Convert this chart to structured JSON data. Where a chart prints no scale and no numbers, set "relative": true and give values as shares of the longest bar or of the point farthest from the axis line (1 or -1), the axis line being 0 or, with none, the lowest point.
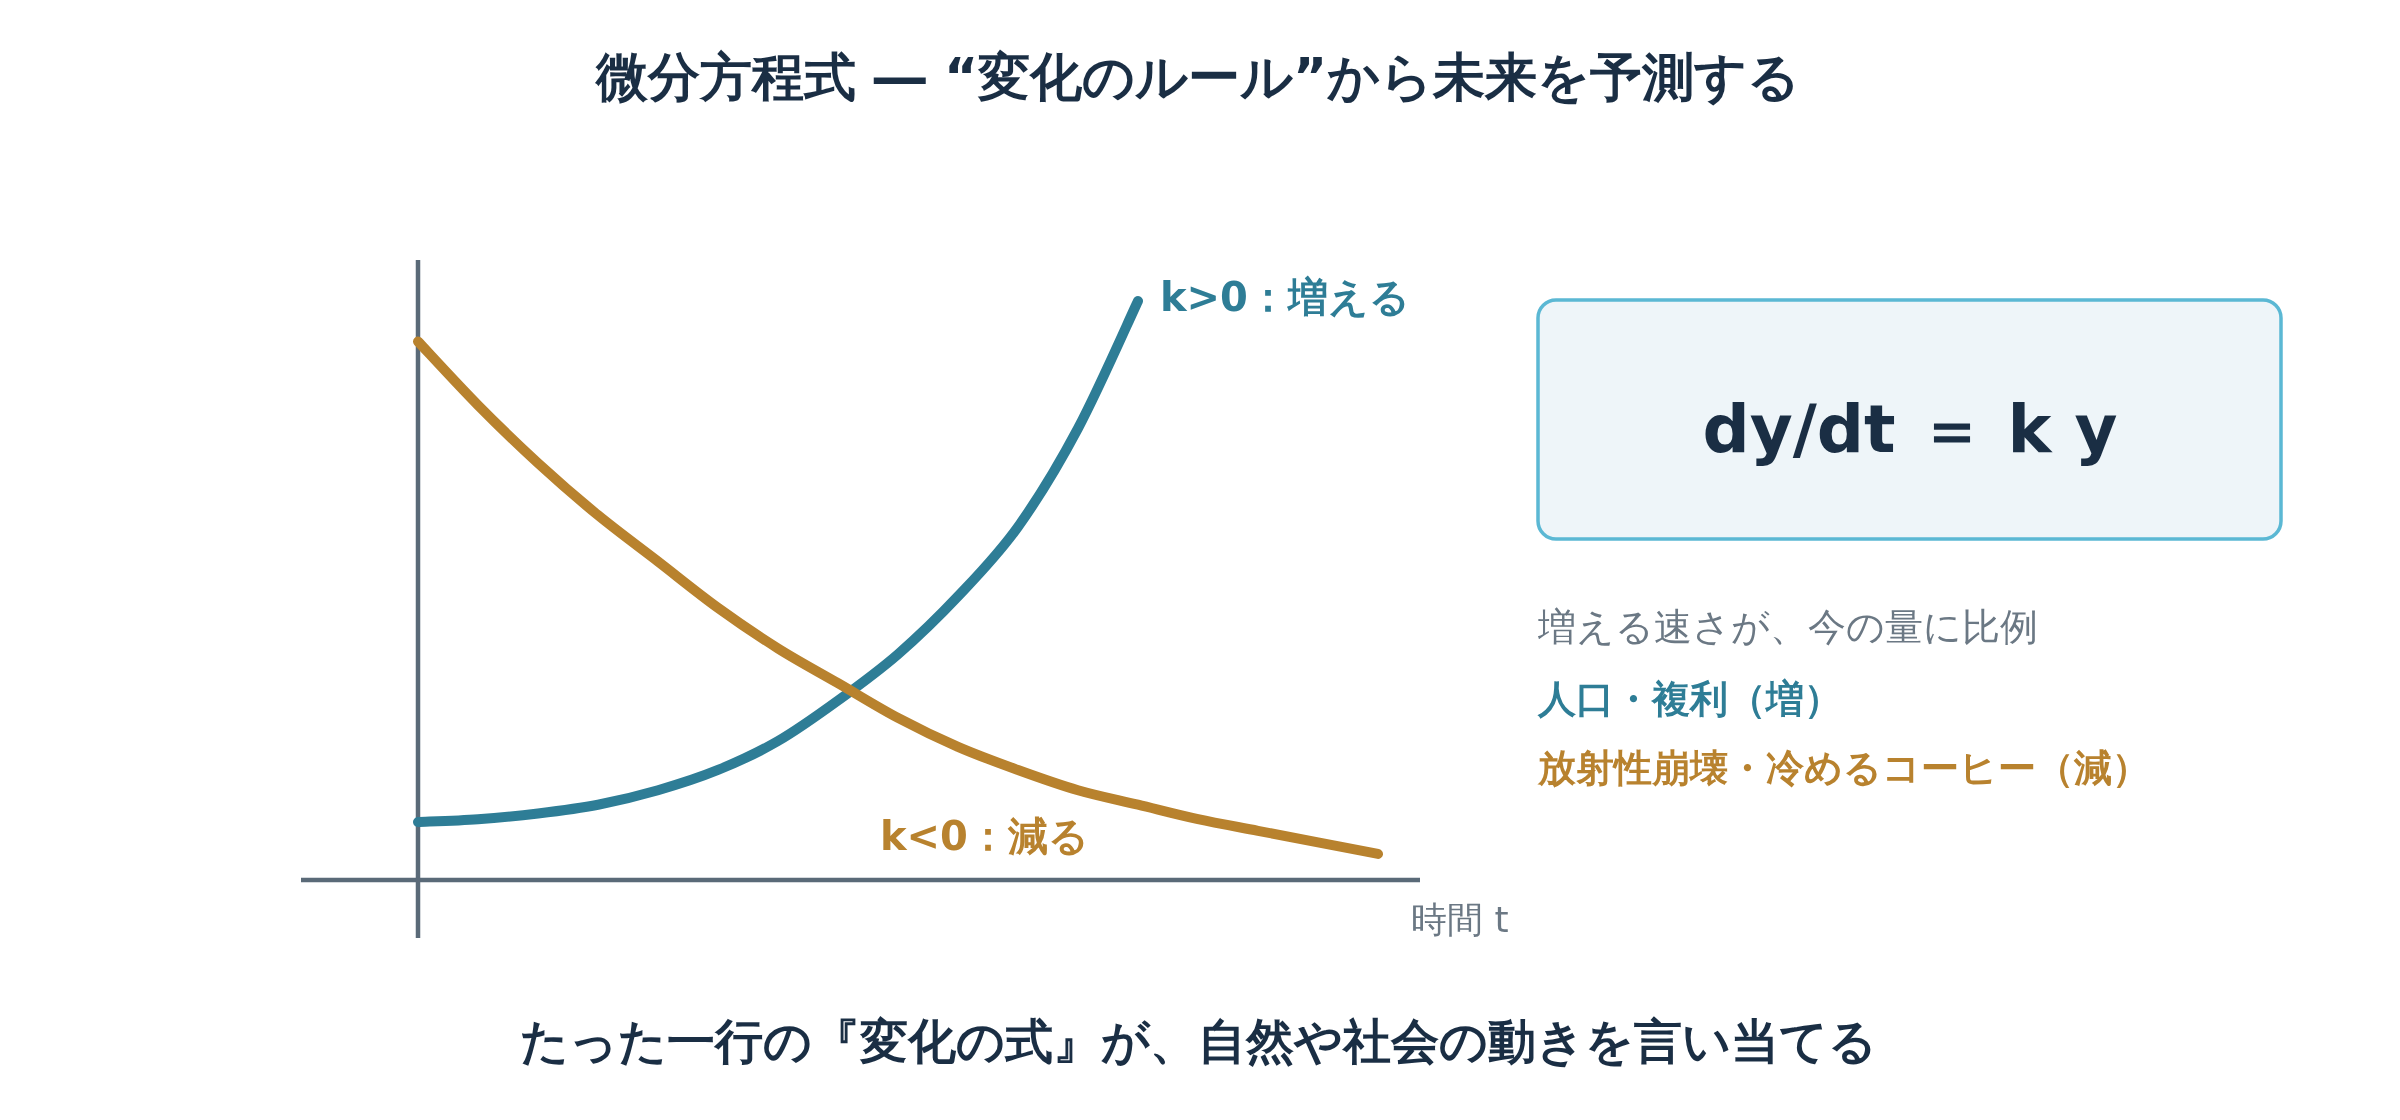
{
  "chart_data": {
    "type": "line",
    "relative": true,
    "title": "微分方程式 ― “変化のルール”から未来を予測する",
    "xlabel": "時間 t",
    "categories": [
      null,
      null,
      null,
      null,
      null,
      null,
      null,
      null,
      null,
      null,
      null,
      null,
      null,
      null,
      null,
      null,
      null
    ],
    "series": [
      {
        "name": "k>0：増える",
        "color": "#2e7d96",
        "values": [
          0.1,
          0.105,
          0.115,
          0.13,
          0.155,
          0.19,
          0.24,
          0.31,
          0.39,
          0.49,
          0.61,
          0.78,
          1.0,
          null,
          null,
          null,
          null
        ]
      },
      {
        "name": "k<0：減る",
        "color": "#b8822e",
        "values": [
          0.93,
          0.82,
          0.72,
          0.63,
          0.55,
          0.47,
          0.4,
          0.34,
          0.28,
          0.23,
          0.19,
          0.155,
          0.13,
          0.105,
          0.085,
          0.065,
          0.045
        ]
      }
    ],
    "annotations": [
      "dy/dt ＝ k y",
      "増える速さが、今の量に比例",
      "人口・複利（増）",
      "放射性崩壊・冷めるコーヒー（減）",
      "たった一行の『変化の式』が、自然や社会の動きを言い当てる"
    ]
  }
}
